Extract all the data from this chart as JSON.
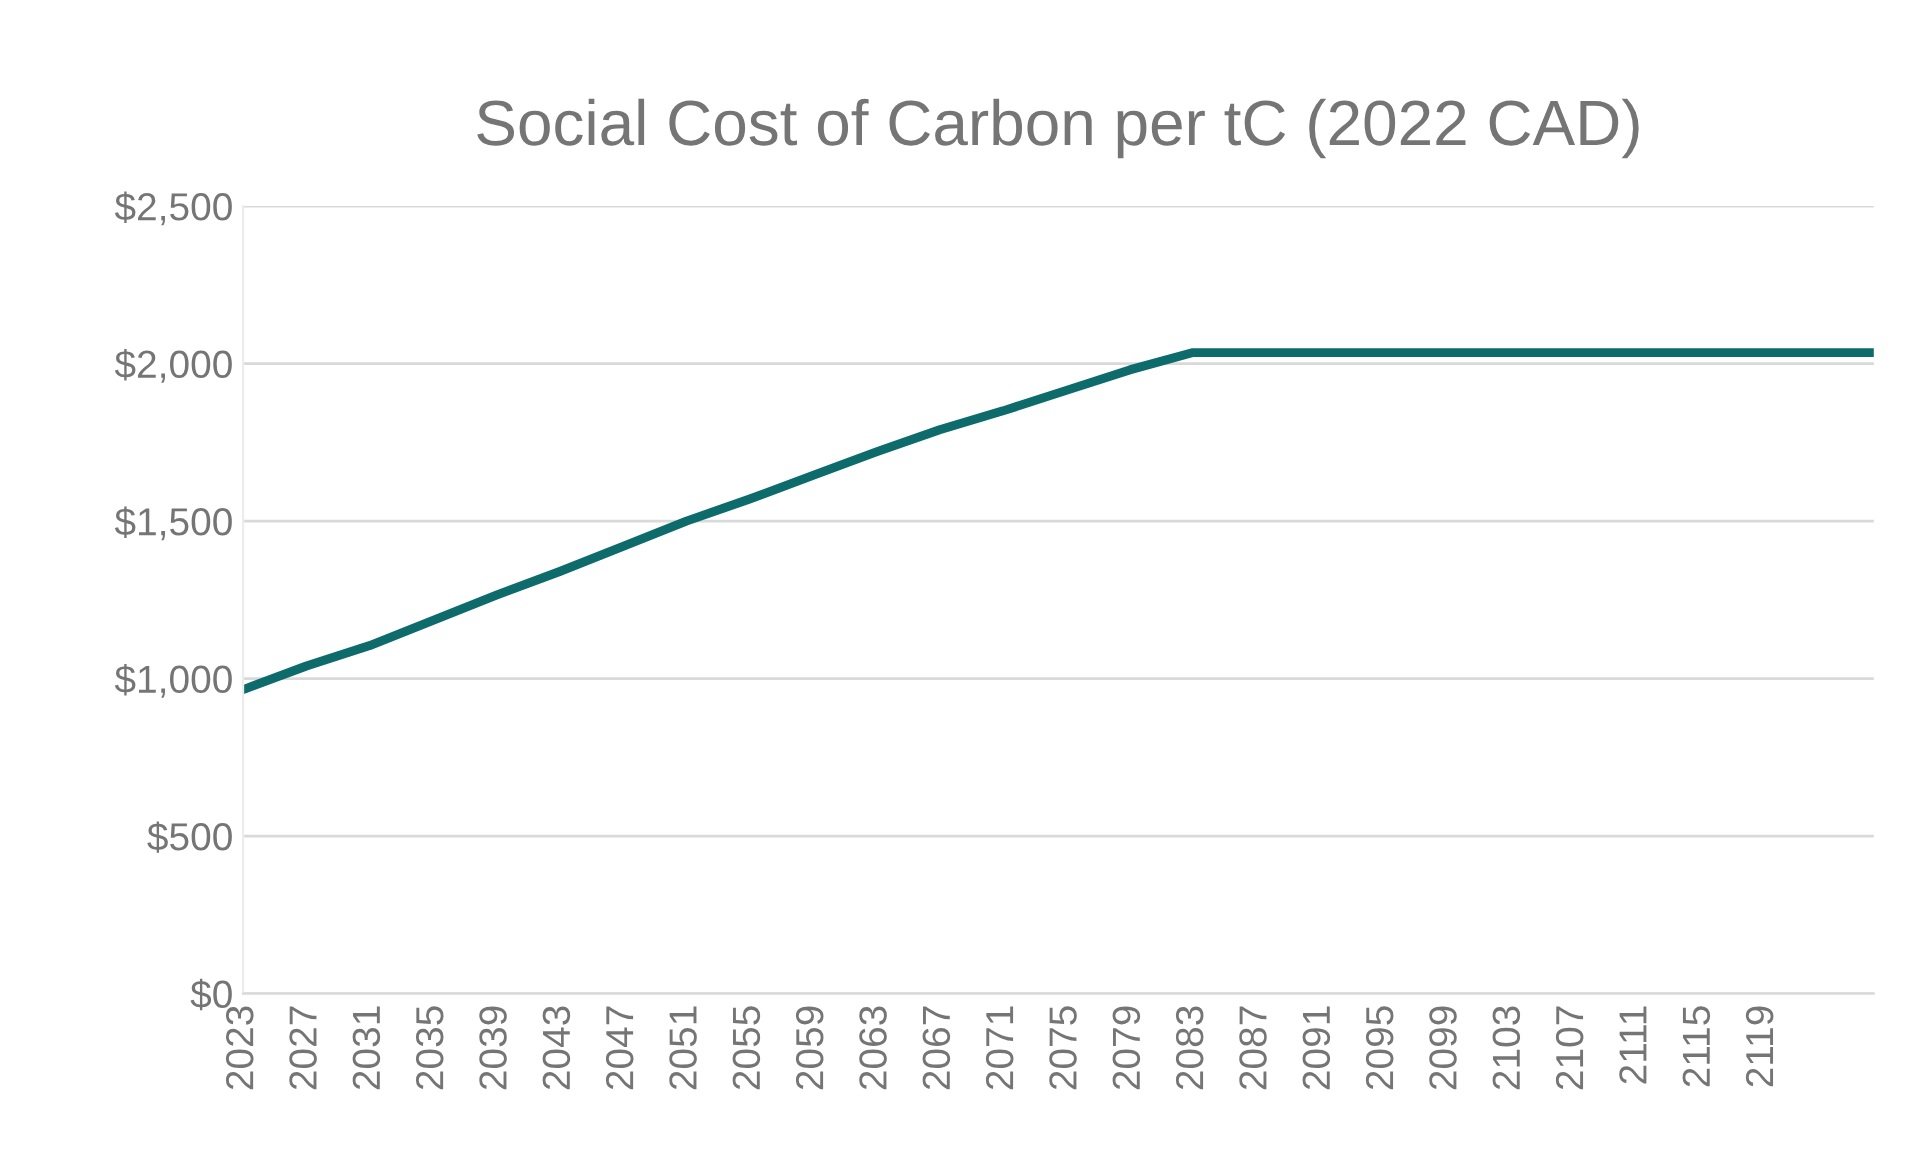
{
  "chart_data": {
    "type": "line",
    "title": "Social Cost of Carbon per tC (2022 CAD)",
    "series": [
      {
        "color": "#0e6b6b",
        "x": [
          2023,
          2027,
          2031,
          2035,
          2039,
          2043,
          2047,
          2051,
          2055,
          2059,
          2063,
          2067,
          2071,
          2075,
          2079,
          2083,
          2126
        ],
        "values": [
          965,
          1040,
          1105,
          1185,
          1265,
          1340,
          1420,
          1500,
          1570,
          1645,
          1720,
          1790,
          1850,
          1915,
          1980,
          2035,
          2035
        ]
      }
    ],
    "xlim": [
      2023,
      2126
    ],
    "xticks": [
      2023,
      2027,
      2031,
      2035,
      2039,
      2043,
      2047,
      2051,
      2055,
      2059,
      2063,
      2067,
      2071,
      2075,
      2079,
      2083,
      2087,
      2091,
      2095,
      2099,
      2103,
      2107,
      2111,
      2115,
      2119
    ],
    "ylim": [
      0,
      2500
    ],
    "yticks": [
      {
        "value": 0,
        "label": "$0"
      },
      {
        "value": 500,
        "label": "$500"
      },
      {
        "value": 1000,
        "label": "$1,000"
      },
      {
        "value": 1500,
        "label": "$1,500"
      },
      {
        "value": 2000,
        "label": "$2,000"
      },
      {
        "value": 2500,
        "label": "$2,500"
      }
    ],
    "grid": "y",
    "marker": "none",
    "line_style": "solid"
  }
}
